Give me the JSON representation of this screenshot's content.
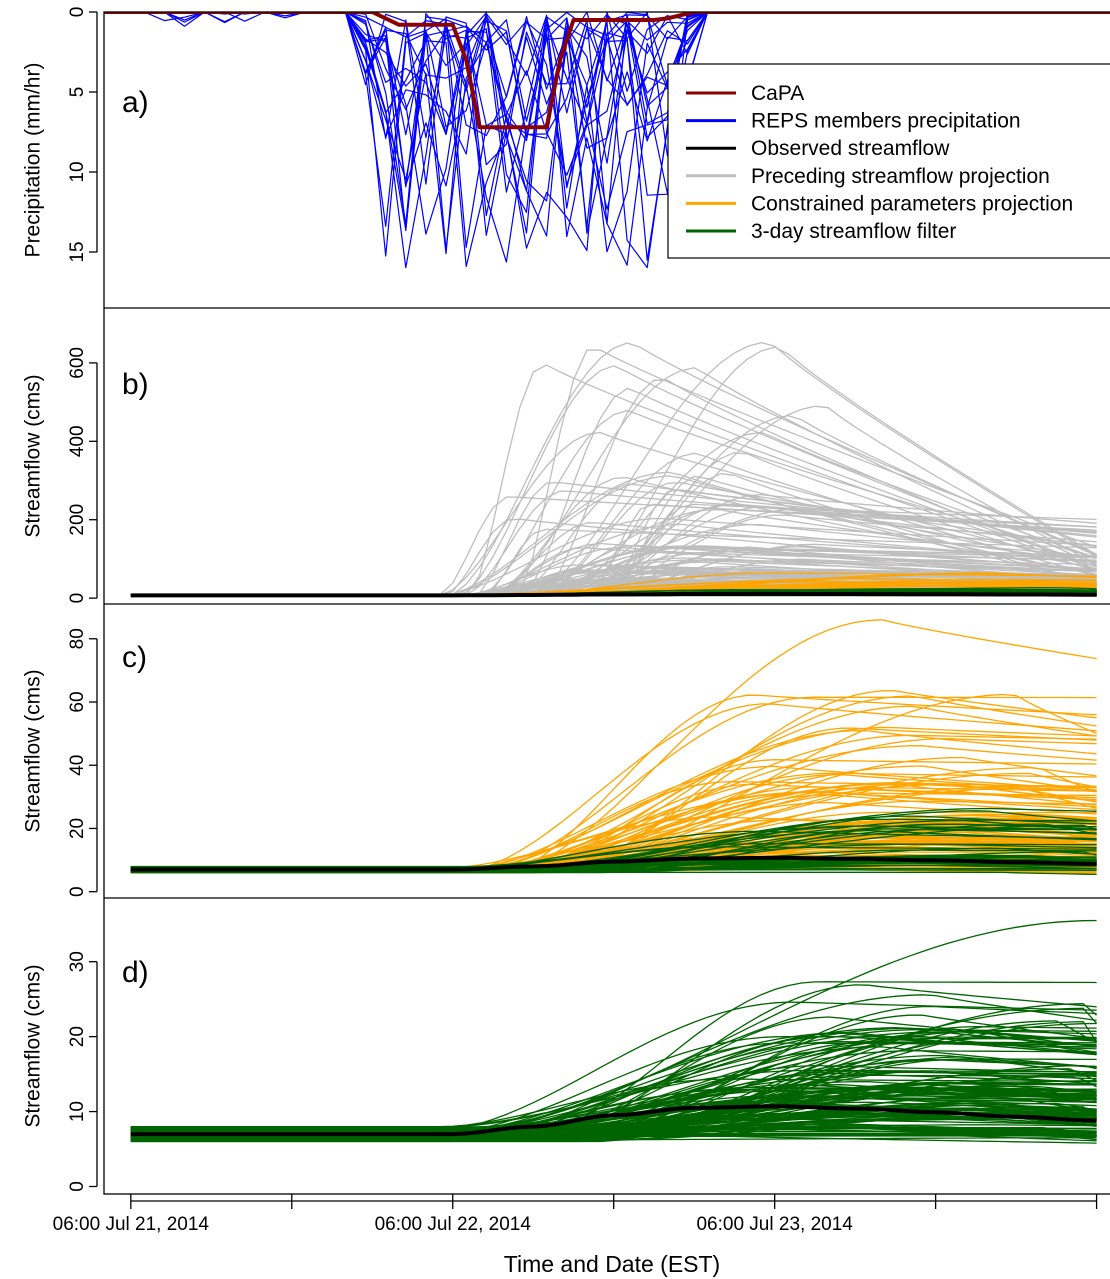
{
  "figure": {
    "x_axis_title": "Time and Date (EST)",
    "x_tick_labels": [
      "06:00 Jul 21, 2014",
      "06:00 Jul 22, 2014",
      "06:00 Jul 23, 2014"
    ],
    "x_tick_hours": [
      0,
      12,
      24,
      36,
      48,
      60,
      72
    ],
    "x_label_hours": [
      0,
      24,
      48
    ],
    "x_range_hours": [
      -2,
      73
    ],
    "x_data_hours": [
      0,
      72
    ]
  },
  "legend": {
    "placement": "top-right of panel a",
    "entries": [
      {
        "label": "CaPA",
        "color": "#8b0000"
      },
      {
        "label": "REPS members precipitation",
        "color": "#0000ff"
      },
      {
        "label": "Observed streamflow",
        "color": "#000000"
      },
      {
        "label": "Preceding streamflow projection",
        "color": "#bebebe"
      },
      {
        "label": "Constrained parameters projection",
        "color": "#ffa500"
      },
      {
        "label": "3-day streamflow filter",
        "color": "#006400"
      }
    ]
  },
  "chart_data": [
    {
      "panel": "a)",
      "type": "line",
      "ylabel": "Precipitation (mm/hr)",
      "y_reversed": true,
      "ylim": [
        0,
        18.5
      ],
      "y_ticks": [
        0,
        5,
        10,
        15
      ],
      "capa": {
        "x_hours": [
          -2,
          0,
          10,
          18,
          20,
          22,
          24,
          25,
          26,
          28,
          30,
          31,
          32,
          33,
          34,
          36,
          38,
          39,
          40,
          41,
          42,
          43,
          44,
          46,
          50,
          60,
          73
        ],
        "values": [
          0,
          0,
          0,
          0,
          0.8,
          0.8,
          0.8,
          3,
          7.2,
          7.2,
          7.2,
          7.2,
          3,
          0.5,
          0.5,
          0.5,
          0.5,
          0.5,
          0.4,
          0.2,
          0,
          0,
          0,
          0,
          0,
          0,
          0
        ]
      },
      "reps_summary": {
        "members": 20,
        "active_window_hours": [
          17,
          42
        ],
        "max_precip_mm_hr": 16
      }
    },
    {
      "panel": "b)",
      "type": "line",
      "ylabel": "Streamflow (cms)",
      "ylim": [
        -15,
        740
      ],
      "y_ticks": [
        0,
        200,
        400,
        600
      ],
      "observed": {
        "x_hours": [
          0,
          12,
          24,
          30,
          36,
          42,
          48,
          54,
          60,
          66,
          72
        ],
        "values": [
          7,
          7,
          7,
          8,
          9.5,
          10.5,
          10.7,
          10.4,
          9.9,
          9.3,
          8.8
        ]
      },
      "series_summary": [
        {
          "name": "Preceding streamflow projection",
          "members": 120,
          "rise_start_hours": [
            23,
            36
          ],
          "max_value_cms": 680
        },
        {
          "name": "Constrained parameters projection",
          "max_value_cms": 86
        },
        {
          "name": "3-day streamflow filter",
          "max_value_cms": 36
        }
      ]
    },
    {
      "panel": "c)",
      "type": "line",
      "ylabel": "Streamflow (cms)",
      "ylim": [
        -2,
        91
      ],
      "y_ticks": [
        0,
        20,
        40,
        60,
        80
      ],
      "observed": {
        "x_hours": [
          0,
          12,
          24,
          30,
          36,
          42,
          48,
          54,
          60,
          66,
          72
        ],
        "values": [
          7,
          7,
          7,
          8,
          9.5,
          10.5,
          10.7,
          10.4,
          9.9,
          9.3,
          8.8
        ]
      },
      "series_summary": [
        {
          "name": "Constrained parameters projection",
          "members": 120,
          "rise_start_hours": [
            23,
            40
          ],
          "max_value_cms": 86,
          "end_range_cms": [
            4,
            71
          ]
        },
        {
          "name": "3-day streamflow filter",
          "max_value_cms": 36
        }
      ]
    },
    {
      "panel": "d)",
      "type": "line",
      "ylabel": "Streamflow (cms)",
      "ylim": [
        -1,
        38.5
      ],
      "y_ticks": [
        0,
        10,
        20,
        30
      ],
      "observed": {
        "x_hours": [
          0,
          12,
          24,
          30,
          36,
          42,
          48,
          54,
          60,
          66,
          72
        ],
        "values": [
          7,
          7,
          7,
          8,
          9.5,
          10.5,
          10.7,
          10.4,
          9.9,
          9.3,
          8.8
        ]
      },
      "series_summary": [
        {
          "name": "3-day streamflow filter",
          "members": 140,
          "rise_start_hours": [
            23,
            38
          ],
          "max_value_cms": 35.5,
          "end_range_cms": [
            5,
            35.5
          ]
        }
      ]
    }
  ]
}
